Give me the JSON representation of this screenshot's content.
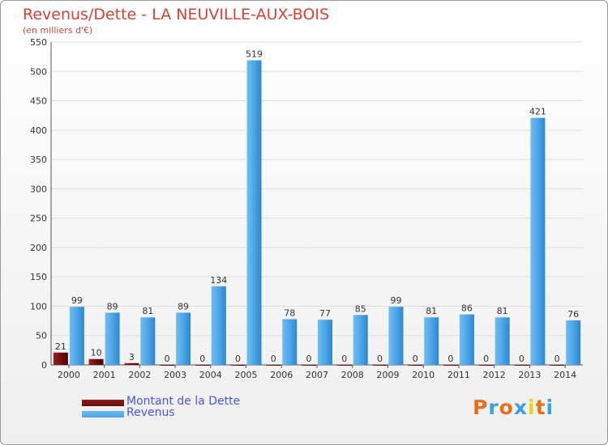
{
  "page": {
    "title": "Revenus/Dette - LA NEUVILLE-AUX-BOIS",
    "subtitle": "(en milliers d'€)",
    "logo": "Proxiti"
  },
  "legend": [
    {
      "label": "Montant de la Dette",
      "color": "#6b0d0d"
    },
    {
      "label": "Revenus",
      "color": "#4aa3e6"
    }
  ],
  "chart_data": {
    "type": "bar",
    "title": "Revenus/Dette - LA NEUVILLE-AUX-BOIS",
    "subtitle": "(en milliers d'€)",
    "xlabel": "",
    "ylabel": "",
    "ylim": [
      0,
      550
    ],
    "yticks": [
      0,
      50,
      100,
      150,
      200,
      250,
      300,
      350,
      400,
      450,
      500,
      550
    ],
    "grid": true,
    "legend_position": "bottom-left",
    "categories": [
      "2000",
      "2001",
      "2002",
      "2003",
      "2004",
      "2005",
      "2006",
      "2007",
      "2008",
      "2009",
      "2010",
      "2011",
      "2012",
      "2013",
      "2014"
    ],
    "series": [
      {
        "name": "Montant de la Dette",
        "color": "#6b0d0d",
        "values": [
          21,
          10,
          3,
          0,
          0,
          0,
          0,
          0,
          0,
          0,
          0,
          0,
          0,
          0,
          0
        ]
      },
      {
        "name": "Revenus",
        "color": "#4aa3e6",
        "values": [
          99,
          89,
          81,
          89,
          134,
          519,
          78,
          77,
          85,
          99,
          81,
          86,
          81,
          421,
          76
        ]
      }
    ]
  }
}
